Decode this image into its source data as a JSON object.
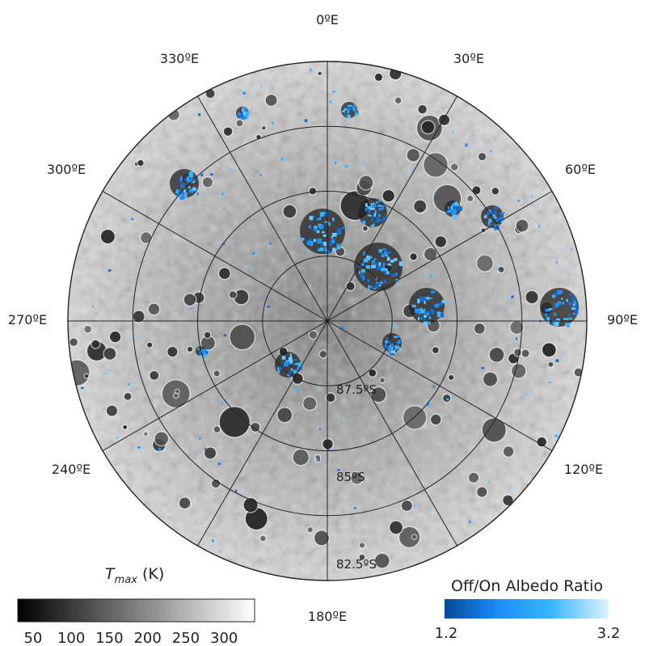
{
  "map": {
    "longitude_labels": [
      {
        "lon": 0,
        "label": "0ºE"
      },
      {
        "lon": 30,
        "label": "30ºE"
      },
      {
        "lon": 60,
        "label": "60ºE"
      },
      {
        "lon": 90,
        "label": "90ºE"
      },
      {
        "lon": 120,
        "label": "120ºE"
      },
      {
        "lon": 180,
        "label": "180ºE"
      },
      {
        "lon": 240,
        "label": "240ºE"
      },
      {
        "lon": 270,
        "label": "270ºE"
      },
      {
        "lon": 300,
        "label": "300ºE"
      },
      {
        "lon": 330,
        "label": "330ºE"
      }
    ],
    "latitude_labels": [
      {
        "lat": 87.5,
        "label": "87.5ºS"
      },
      {
        "lat": 85,
        "label": "85ºS"
      },
      {
        "lat": 82.5,
        "label": "82.5ºS"
      }
    ],
    "meridians_deg": [
      0,
      30,
      60,
      90,
      120,
      150,
      180,
      210,
      240,
      270,
      300,
      330
    ],
    "parallels_deg_s": [
      87.5,
      85,
      82.5,
      80
    ]
  },
  "colorbar_tmax": {
    "title_T": "T",
    "title_sub": "max",
    "title_unit": " (K)",
    "ticks": [
      "50",
      "100",
      "150",
      "200",
      "250",
      "300"
    ],
    "tick_values": [
      50,
      100,
      150,
      200,
      250,
      300
    ],
    "min": 30,
    "max": 340,
    "colors": [
      "#000000",
      "#ffffff"
    ]
  },
  "colorbar_albedo": {
    "title": "Off/On Albedo Ratio",
    "ticks": [
      "1.2",
      "3.2"
    ],
    "tick_values": [
      1.2,
      3.2
    ],
    "colors": [
      "#004a99",
      "#1e90ff",
      "#38b6ff",
      "#dff2ff"
    ]
  }
}
